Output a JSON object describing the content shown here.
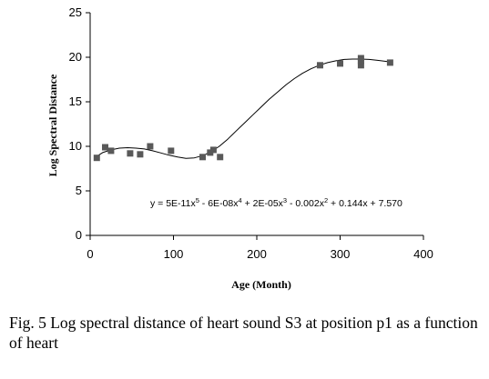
{
  "caption": "Fig. 5 Log spectral distance of heart sound S3 at position p1 as a function of heart",
  "chart_data": {
    "type": "scatter",
    "title": "",
    "xlabel": "Age (Month)",
    "ylabel": "Log Spectral Distance",
    "xlim": [
      0,
      400
    ],
    "ylim": [
      0,
      25
    ],
    "xticks": [
      0,
      100,
      200,
      300,
      400
    ],
    "yticks": [
      0,
      5,
      10,
      15,
      20,
      25
    ],
    "grid": false,
    "legend": "none",
    "marker_color": "#595959",
    "trend_color": "#000000",
    "points": [
      {
        "x": 8,
        "y": 8.7
      },
      {
        "x": 18,
        "y": 9.9
      },
      {
        "x": 25,
        "y": 9.5
      },
      {
        "x": 48,
        "y": 9.2
      },
      {
        "x": 60,
        "y": 9.1
      },
      {
        "x": 72,
        "y": 10.0
      },
      {
        "x": 97,
        "y": 9.5
      },
      {
        "x": 135,
        "y": 8.8
      },
      {
        "x": 144,
        "y": 9.3
      },
      {
        "x": 148,
        "y": 9.6
      },
      {
        "x": 156,
        "y": 8.8
      },
      {
        "x": 276,
        "y": 19.1
      },
      {
        "x": 300,
        "y": 19.3
      },
      {
        "x": 325,
        "y": 19.9
      },
      {
        "x": 325,
        "y": 19.1
      },
      {
        "x": 325,
        "y": 19.6
      },
      {
        "x": 360,
        "y": 19.4
      }
    ],
    "trendline": {
      "type": "polynomial",
      "x": [
        5,
        15,
        25,
        35,
        45,
        55,
        65,
        75,
        85,
        95,
        105,
        115,
        125,
        135,
        145,
        155,
        165,
        175,
        185,
        195,
        205,
        215,
        225,
        235,
        245,
        255,
        265,
        275,
        285,
        295,
        305,
        315,
        325,
        335,
        345,
        358
      ],
      "y": [
        8.7,
        9.3,
        9.6,
        9.8,
        9.85,
        9.8,
        9.7,
        9.5,
        9.25,
        9.0,
        8.8,
        8.65,
        8.7,
        8.95,
        9.4,
        10.0,
        10.8,
        11.7,
        12.6,
        13.5,
        14.4,
        15.3,
        16.1,
        16.9,
        17.6,
        18.2,
        18.7,
        19.1,
        19.4,
        19.6,
        19.75,
        19.8,
        19.8,
        19.75,
        19.65,
        19.5
      ],
      "equation": {
        "parts": [
          "y = 5E-11x",
          "5",
          " - 6E-08x",
          "4",
          " + 2E-05x",
          "3",
          " - 0.002x",
          "2",
          " + 0.144x + 7.570"
        ]
      }
    }
  }
}
